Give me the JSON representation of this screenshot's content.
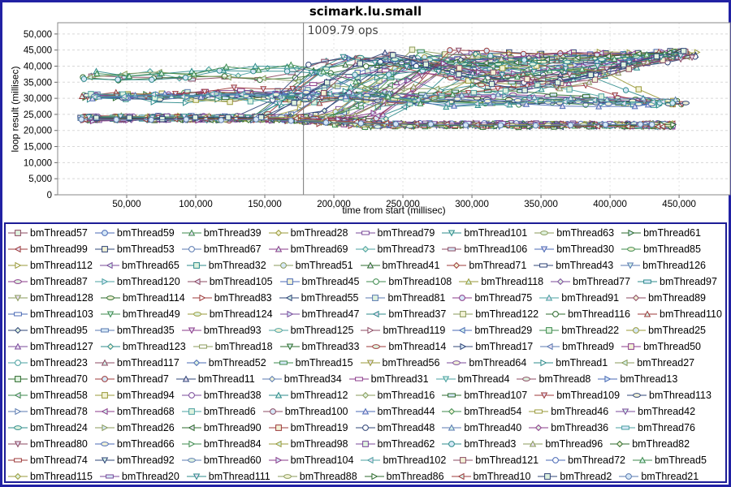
{
  "chart_data": {
    "type": "line",
    "title": "scimark.lu.small",
    "subtitle": "1009.79 ops",
    "annotation_x": 178000,
    "xlabel": "time from start (millisec)",
    "ylabel": "loop result (millisec)",
    "xlim": [
      0,
      487000
    ],
    "ylim": [
      0,
      53500
    ],
    "x_ticks": [
      50000,
      100000,
      150000,
      200000,
      250000,
      300000,
      350000,
      400000,
      450000
    ],
    "y_ticks": [
      0,
      5000,
      10000,
      15000,
      20000,
      25000,
      30000,
      35000,
      40000,
      45000,
      50000
    ],
    "grid": true,
    "legend_position": "bottom",
    "series_names": [
      "bmThread57",
      "bmThread59",
      "bmThread39",
      "bmThread28",
      "bmThread79",
      "bmThread101",
      "bmThread63",
      "bmThread61",
      "bmThread99",
      "bmThread53",
      "bmThread67",
      "bmThread69",
      "bmThread73",
      "bmThread106",
      "bmThread30",
      "bmThread85",
      "bmThread112",
      "bmThread65",
      "bmThread32",
      "bmThread51",
      "bmThread41",
      "bmThread71",
      "bmThread43",
      "bmThread126",
      "bmThread87",
      "bmThread120",
      "bmThread105",
      "bmThread45",
      "bmThread108",
      "bmThread118",
      "bmThread77",
      "bmThread97",
      "bmThread128",
      "bmThread114",
      "bmThread83",
      "bmThread55",
      "bmThread81",
      "bmThread75",
      "bmThread91",
      "bmThread89",
      "bmThread103",
      "bmThread49",
      "bmThread124",
      "bmThread47",
      "bmThread37",
      "bmThread122",
      "bmThread116",
      "bmThread110",
      "bmThread95",
      "bmThread35",
      "bmThread93",
      "bmThread125",
      "bmThread119",
      "bmThread29",
      "bmThread22",
      "bmThread25",
      "bmThread127",
      "bmThread123",
      "bmThread18",
      "bmThread33",
      "bmThread14",
      "bmThread17",
      "bmThread9",
      "bmThread50",
      "bmThread23",
      "bmThread117",
      "bmThread52",
      "bmThread15",
      "bmThread56",
      "bmThread64",
      "bmThread1",
      "bmThread27",
      "bmThread70",
      "bmThread7",
      "bmThread11",
      "bmThread34",
      "bmThread31",
      "bmThread4",
      "bmThread8",
      "bmThread13",
      "bmThread58",
      "bmThread94",
      "bmThread38",
      "bmThread12",
      "bmThread16",
      "bmThread107",
      "bmThread109",
      "bmThread113",
      "bmThread78",
      "bmThread68",
      "bmThread6",
      "bmThread100",
      "bmThread44",
      "bmThread54",
      "bmThread46",
      "bmThread42",
      "bmThread24",
      "bmThread26",
      "bmThread90",
      "bmThread19",
      "bmThread48",
      "bmThread40",
      "bmThread36",
      "bmThread76",
      "bmThread80",
      "bmThread66",
      "bmThread84",
      "bmThread98",
      "bmThread62",
      "bmThread3",
      "bmThread96",
      "bmThread82",
      "bmThread74",
      "bmThread92",
      "bmThread60",
      "bmThread104",
      "bmThread102",
      "bmThread121",
      "bmThread72",
      "bmThread5",
      "bmThread115",
      "bmThread20",
      "bmThread111",
      "bmThread88",
      "bmThread86",
      "bmThread10",
      "bmThread2",
      "bmThread21"
    ],
    "palette": [
      "#8b4a62",
      "#4a6ab5",
      "#3d8a4d",
      "#9a9a3a",
      "#7a4a9a",
      "#2e8b8b",
      "#8a9a5a",
      "#2d6b2d",
      "#9c3a3a",
      "#2f4477",
      "#5a7ab0",
      "#8a3a8a",
      "#4aa0a0"
    ],
    "marker_fills": [
      "#dff2df",
      "#d6e8f7",
      "#e8dff2",
      "#f2f2d6",
      "#ffffff",
      "#d6f2ea"
    ],
    "marker_shapes": [
      "square",
      "circle",
      "triangle-up",
      "diamond",
      "hbar",
      "triangle-down",
      "ellipse",
      "triangle-right",
      "triangle-left"
    ],
    "colors": {
      "page_border": "#2121a3",
      "legend_border": "#1c1c96",
      "plot_border": "#8a8a8a",
      "grid_h": "#d8d8d8",
      "grid_v": "#e4e4e4",
      "tick": "#666666",
      "crosshair": "#787878",
      "annotation_text": "#454545"
    },
    "generation": {
      "seed": 1337,
      "proportions": {
        "low": 0.52,
        "riser": 0.26,
        "upper": 0.12,
        "mid": 0.1
      },
      "t_start": [
        17000,
        30000
      ],
      "t_step": [
        21000,
        27000
      ],
      "bands": {
        "start_low": [
          23300,
          24300
        ],
        "start_mid": [
          30300,
          31000
        ],
        "start_high": [
          36300,
          38500
        ],
        "low_end": [
          21100,
          22300
        ],
        "mid_end": [
          27800,
          29800
        ],
        "high_end": [
          42600,
          44800
        ]
      },
      "clamp": [
        20900,
        45300
      ]
    }
  }
}
